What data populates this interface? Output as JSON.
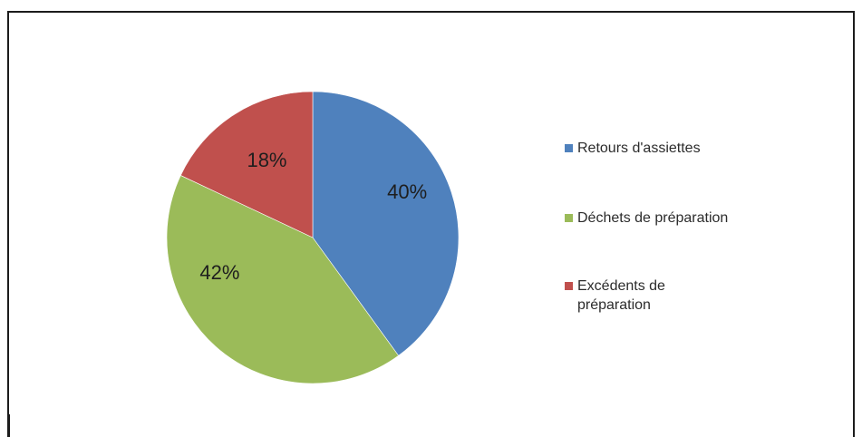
{
  "chart_data": {
    "type": "pie",
    "title": "",
    "series": [
      {
        "name": "Retours d'assiettes",
        "value": 40,
        "label": "40%",
        "color": "#4f81bd"
      },
      {
        "name": "Déchets de préparation",
        "value": 42,
        "label": "42%",
        "color": "#9bbb59"
      },
      {
        "name": "Excédents de préparation",
        "value": 18,
        "label": "18%",
        "color": "#c0504d"
      }
    ],
    "start_angle": "12 o'clock",
    "direction": "clockwise",
    "legend_position": "right"
  },
  "legend": {
    "items": [
      {
        "text": "Retours d'assiettes",
        "color": "#4f81bd"
      },
      {
        "text": "Déchets de préparation",
        "color": "#9bbb59"
      },
      {
        "text": "Excédents de préparation",
        "color": "#c0504d"
      }
    ]
  }
}
